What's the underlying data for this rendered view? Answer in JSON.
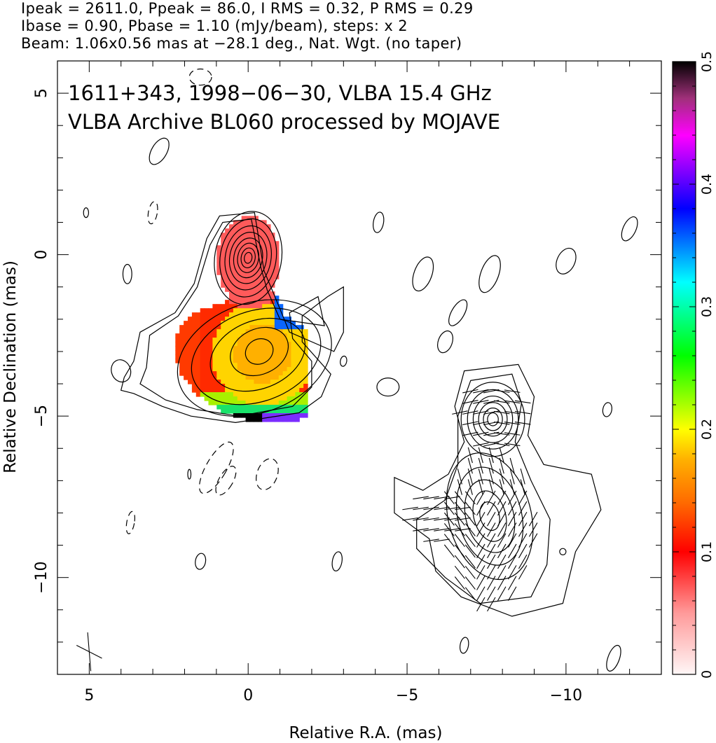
{
  "header": {
    "line1": "Ipeak = 2611.0, Ppeak = 86.0, I RMS = 0.32, P RMS = 0.29",
    "line2": "Ibase = 0.90, Pbase = 1.10 (mJy/beam), steps: x 2",
    "line3": "Beam: 1.06x0.56 mas at −28.1 deg., Nat. Wgt. (no taper)"
  },
  "chart_data": {
    "type": "heatmap",
    "title_line1": "1611+343, 1998−06−30, VLBA 15.4 GHz",
    "title_line2": "VLBA Archive BL060 processed by MOJAVE",
    "xlabel": "Relative R.A. (mas)",
    "ylabel": "Relative Declination (mas)",
    "xlim": [
      6,
      -13
    ],
    "ylim": [
      -13,
      6
    ],
    "xticks": [
      5,
      0,
      -5,
      -10
    ],
    "xtick_labels": [
      "5",
      "0",
      "−5",
      "−10"
    ],
    "yticks": [
      5,
      0,
      -5,
      -10
    ],
    "ytick_labels": [
      "5",
      "0",
      "−5",
      "−10"
    ],
    "colorbar": {
      "min": 0,
      "max": 0.5,
      "ticks": [
        0,
        0.1,
        0.2,
        0.3,
        0.4,
        0.5
      ],
      "tick_labels": [
        "0",
        "0.1",
        "0.2",
        "0.3",
        "0.4",
        "0.5"
      ]
    },
    "core_position": [
      0,
      0
    ],
    "jet_component": [
      -0.4,
      -3.0
    ],
    "polarization_panel_center": [
      -7.7,
      -5.1
    ],
    "beam_marker_position": [
      5,
      -12.3
    ],
    "grid": false
  }
}
